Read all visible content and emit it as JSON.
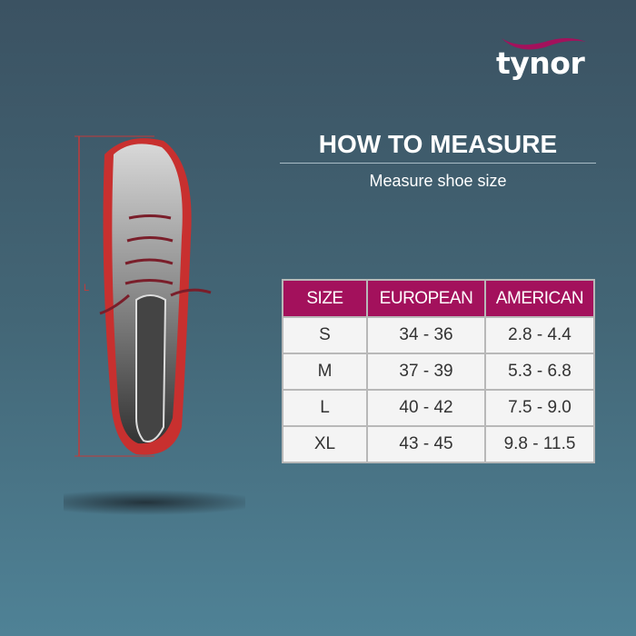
{
  "brand": {
    "logo_text": "tynor",
    "swoosh_color": "#a3115c"
  },
  "heading": {
    "title": "HOW TO MEASURE",
    "subtitle": "Measure shoe size"
  },
  "measure_marker": "L",
  "size_table": {
    "header_color": "#a3115c",
    "columns": [
      "SIZE",
      "EUROPEAN",
      "AMERICAN"
    ],
    "rows": [
      [
        "S",
        "34 - 36",
        "2.8 - 4.4"
      ],
      [
        "M",
        "37 - 39",
        "5.3 - 6.8"
      ],
      [
        "L",
        "40 - 42",
        "7.5 - 9.0"
      ],
      [
        "XL",
        "43 - 45",
        "9.8 - 11.5"
      ]
    ]
  }
}
